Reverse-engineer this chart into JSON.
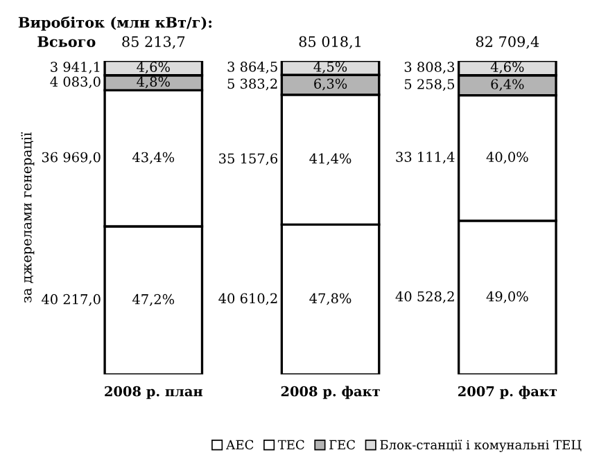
{
  "chart_data": {
    "type": "bar",
    "stacked": true,
    "title": "Виробіток (млн кВт/г):",
    "ylabel": "за джерелами генерації",
    "categories": [
      "2008 р. план",
      "2008 р. факт",
      "2007 р. факт"
    ],
    "series": [
      {
        "name": "АЕС",
        "color": "#ffffff",
        "values": [
          47.2,
          47.8,
          49.0
        ],
        "value_labels": [
          "47,2%",
          "47,8%",
          "49,0%"
        ]
      },
      {
        "name": "ТЕС",
        "color": "#ffffff",
        "values": [
          43.4,
          41.4,
          40.0
        ],
        "value_labels": [
          "43,4%",
          "41,4%",
          "40,0%"
        ]
      },
      {
        "name": "ГЕС",
        "color": "#b4b4b4",
        "values": [
          4.8,
          6.3,
          6.4
        ],
        "value_labels": [
          "4,8%",
          "6,3%",
          "6,4%"
        ]
      },
      {
        "name": "Блок-станції і комунальні ТЕЦ",
        "color": "#dcdcdc",
        "values": [
          4.6,
          4.5,
          4.6
        ],
        "value_labels": [
          "4,6%",
          "4,5%",
          "4,6%"
        ]
      }
    ],
    "annotations": [
      "Всього",
      "85 213,7",
      "40 217,0",
      "36 969,0",
      "4 083,0",
      "3 941,1",
      "85 018,1",
      "40 610,2",
      "35 157,6",
      "5 383,2",
      "3 864,5",
      "82 709,4",
      "40 528,2",
      "33 111,4",
      "5 258,5",
      "3 808,3"
    ],
    "legend": "bottom right",
    "grid": false
  }
}
